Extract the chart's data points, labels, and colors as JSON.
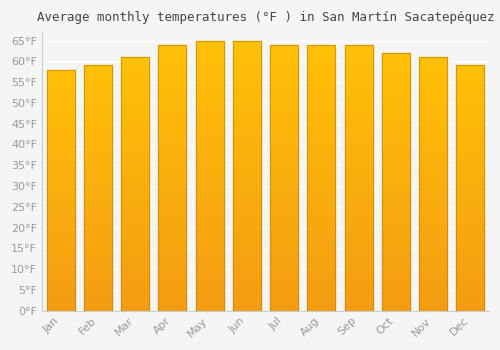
{
  "title": "Average monthly temperatures (°F ) in San Martín Sacatepéquez",
  "months": [
    "Jan",
    "Feb",
    "Mar",
    "Apr",
    "May",
    "Jun",
    "Jul",
    "Aug",
    "Sep",
    "Oct",
    "Nov",
    "Dec"
  ],
  "values": [
    58,
    59,
    61,
    64,
    65,
    65,
    64,
    64,
    64,
    62,
    61,
    59
  ],
  "bar_color_main": "#FFC107",
  "bar_color_edge": "#E65100",
  "background_color": "#f5f5f5",
  "grid_color": "#ffffff",
  "yticks": [
    0,
    5,
    10,
    15,
    20,
    25,
    30,
    35,
    40,
    45,
    50,
    55,
    60,
    65
  ],
  "ylim": [
    0,
    67
  ],
  "title_fontsize": 9,
  "tick_fontsize": 8,
  "tick_color": "#999999",
  "bar_width": 0.75
}
